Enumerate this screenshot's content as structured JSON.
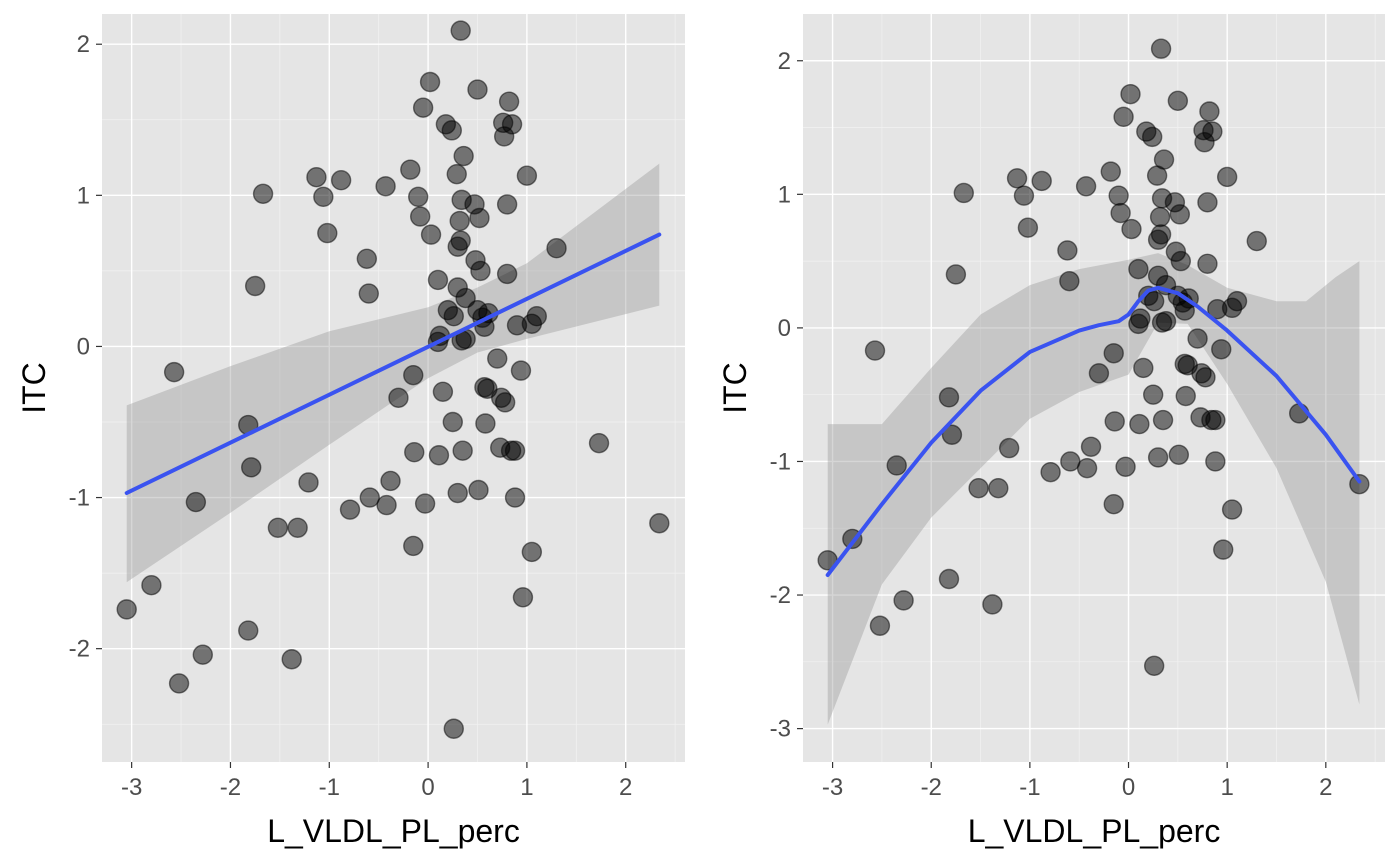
{
  "chart_data": [
    {
      "type": "scatter",
      "smooth": "linear fit with confidence band",
      "xlabel": "L_VLDL_PL_perc",
      "ylabel": "ITC",
      "xlim": [
        -3.3,
        2.6
      ],
      "ylim": [
        -2.75,
        2.2
      ],
      "x_ticks": [
        -3,
        -2,
        -1,
        0,
        1,
        2
      ],
      "y_ticks": [
        -2,
        -1,
        0,
        1,
        2
      ],
      "line_color": "#3a53f0",
      "points": [
        [
          -3.05,
          -1.74
        ],
        [
          -2.8,
          -1.58
        ],
        [
          -2.57,
          -0.17
        ],
        [
          -2.52,
          -2.23
        ],
        [
          -2.35,
          -1.03
        ],
        [
          -2.28,
          -2.04
        ],
        [
          -1.82,
          -0.52
        ],
        [
          -1.82,
          -1.88
        ],
        [
          -1.79,
          -0.8
        ],
        [
          -1.75,
          0.4
        ],
        [
          -1.67,
          1.01
        ],
        [
          -1.52,
          -1.2
        ],
        [
          -1.38,
          -2.07
        ],
        [
          -1.32,
          -1.2
        ],
        [
          -1.21,
          -0.9
        ],
        [
          -1.13,
          1.12
        ],
        [
          -1.06,
          0.99
        ],
        [
          -1.02,
          0.75
        ],
        [
          -0.88,
          1.1
        ],
        [
          -0.79,
          -1.08
        ],
        [
          -0.62,
          0.58
        ],
        [
          -0.6,
          0.35
        ],
        [
          -0.59,
          -1.0
        ],
        [
          -0.43,
          1.06
        ],
        [
          -0.42,
          -1.05
        ],
        [
          -0.38,
          -0.89
        ],
        [
          -0.3,
          -0.34
        ],
        [
          -0.18,
          1.17
        ],
        [
          -0.15,
          -0.19
        ],
        [
          -0.15,
          -1.32
        ],
        [
          -0.14,
          -0.7
        ],
        [
          -0.1,
          0.99
        ],
        [
          -0.08,
          0.86
        ],
        [
          -0.05,
          1.58
        ],
        [
          -0.03,
          -1.04
        ],
        [
          0.02,
          1.75
        ],
        [
          0.03,
          0.74
        ],
        [
          0.1,
          0.44
        ],
        [
          0.1,
          0.03
        ],
        [
          0.11,
          -0.72
        ],
        [
          0.12,
          0.07
        ],
        [
          0.15,
          -0.3
        ],
        [
          0.18,
          1.47
        ],
        [
          0.2,
          0.24
        ],
        [
          0.24,
          1.43
        ],
        [
          0.25,
          -0.5
        ],
        [
          0.26,
          0.2
        ],
        [
          0.26,
          -2.53
        ],
        [
          0.29,
          1.14
        ],
        [
          0.3,
          0.39
        ],
        [
          0.3,
          0.66
        ],
        [
          0.3,
          -0.97
        ],
        [
          0.32,
          0.83
        ],
        [
          0.33,
          0.7
        ],
        [
          0.33,
          2.09
        ],
        [
          0.34,
          0.04
        ],
        [
          0.34,
          0.97
        ],
        [
          0.35,
          -0.69
        ],
        [
          0.36,
          1.26
        ],
        [
          0.38,
          0.05
        ],
        [
          0.38,
          0.32
        ],
        [
          0.47,
          0.94
        ],
        [
          0.48,
          0.57
        ],
        [
          0.5,
          1.7
        ],
        [
          0.5,
          0.24
        ],
        [
          0.51,
          -0.95
        ],
        [
          0.52,
          0.85
        ],
        [
          0.53,
          0.5
        ],
        [
          0.55,
          0.19
        ],
        [
          0.57,
          0.13
        ],
        [
          0.57,
          -0.27
        ],
        [
          0.58,
          -0.51
        ],
        [
          0.6,
          -0.28
        ],
        [
          0.61,
          0.22
        ],
        [
          0.7,
          -0.08
        ],
        [
          0.73,
          -0.67
        ],
        [
          0.74,
          -0.34
        ],
        [
          0.76,
          1.48
        ],
        [
          0.77,
          1.39
        ],
        [
          0.78,
          -0.37
        ],
        [
          0.8,
          0.94
        ],
        [
          0.8,
          0.48
        ],
        [
          0.82,
          1.62
        ],
        [
          0.84,
          -0.69
        ],
        [
          0.85,
          1.47
        ],
        [
          0.88,
          -0.69
        ],
        [
          0.88,
          -1.0
        ],
        [
          0.9,
          0.14
        ],
        [
          0.94,
          -0.16
        ],
        [
          0.96,
          -1.66
        ],
        [
          1.0,
          1.13
        ],
        [
          1.05,
          -1.36
        ],
        [
          1.05,
          0.15
        ],
        [
          1.1,
          0.2
        ],
        [
          1.3,
          0.65
        ],
        [
          1.73,
          -0.64
        ],
        [
          2.34,
          -1.17
        ]
      ],
      "fit": [
        [
          -3.05,
          -0.97
        ],
        [
          2.34,
          0.74
        ]
      ],
      "band_upper": [
        [
          -3.05,
          -0.39
        ],
        [
          -2.0,
          -0.13
        ],
        [
          -1.0,
          0.1
        ],
        [
          0.0,
          0.26
        ],
        [
          0.5,
          0.39
        ],
        [
          1.0,
          0.55
        ],
        [
          2.34,
          1.21
        ]
      ],
      "band_lower": [
        [
          -3.05,
          -1.56
        ],
        [
          -2.0,
          -1.1
        ],
        [
          -1.0,
          -0.65
        ],
        [
          0.0,
          -0.21
        ],
        [
          0.5,
          -0.04
        ],
        [
          1.0,
          0.05
        ],
        [
          2.34,
          0.27
        ]
      ]
    },
    {
      "type": "scatter",
      "smooth": "loess fit with confidence band",
      "xlabel": "L_VLDL_PL_perc",
      "ylabel": "ITC",
      "xlim": [
        -3.3,
        2.6
      ],
      "ylim": [
        -3.25,
        2.35
      ],
      "x_ticks": [
        -3,
        -2,
        -1,
        0,
        1,
        2
      ],
      "y_ticks": [
        -3,
        -2,
        -1,
        0,
        1,
        2
      ],
      "line_color": "#3a53f0",
      "points": [
        [
          -3.05,
          -1.74
        ],
        [
          -2.8,
          -1.58
        ],
        [
          -2.57,
          -0.17
        ],
        [
          -2.52,
          -2.23
        ],
        [
          -2.35,
          -1.03
        ],
        [
          -2.28,
          -2.04
        ],
        [
          -1.82,
          -0.52
        ],
        [
          -1.82,
          -1.88
        ],
        [
          -1.79,
          -0.8
        ],
        [
          -1.75,
          0.4
        ],
        [
          -1.67,
          1.01
        ],
        [
          -1.52,
          -1.2
        ],
        [
          -1.38,
          -2.07
        ],
        [
          -1.32,
          -1.2
        ],
        [
          -1.21,
          -0.9
        ],
        [
          -1.13,
          1.12
        ],
        [
          -1.06,
          0.99
        ],
        [
          -1.02,
          0.75
        ],
        [
          -0.88,
          1.1
        ],
        [
          -0.79,
          -1.08
        ],
        [
          -0.62,
          0.58
        ],
        [
          -0.6,
          0.35
        ],
        [
          -0.59,
          -1.0
        ],
        [
          -0.43,
          1.06
        ],
        [
          -0.42,
          -1.05
        ],
        [
          -0.38,
          -0.89
        ],
        [
          -0.3,
          -0.34
        ],
        [
          -0.18,
          1.17
        ],
        [
          -0.15,
          -0.19
        ],
        [
          -0.15,
          -1.32
        ],
        [
          -0.14,
          -0.7
        ],
        [
          -0.1,
          0.99
        ],
        [
          -0.08,
          0.86
        ],
        [
          -0.05,
          1.58
        ],
        [
          -0.03,
          -1.04
        ],
        [
          0.02,
          1.75
        ],
        [
          0.03,
          0.74
        ],
        [
          0.1,
          0.44
        ],
        [
          0.1,
          0.03
        ],
        [
          0.11,
          -0.72
        ],
        [
          0.12,
          0.07
        ],
        [
          0.15,
          -0.3
        ],
        [
          0.18,
          1.47
        ],
        [
          0.2,
          0.24
        ],
        [
          0.24,
          1.43
        ],
        [
          0.25,
          -0.5
        ],
        [
          0.26,
          0.2
        ],
        [
          0.26,
          -2.53
        ],
        [
          0.29,
          1.14
        ],
        [
          0.3,
          0.39
        ],
        [
          0.3,
          0.66
        ],
        [
          0.3,
          -0.97
        ],
        [
          0.32,
          0.83
        ],
        [
          0.33,
          0.7
        ],
        [
          0.33,
          2.09
        ],
        [
          0.34,
          0.04
        ],
        [
          0.34,
          0.97
        ],
        [
          0.35,
          -0.69
        ],
        [
          0.36,
          1.26
        ],
        [
          0.38,
          0.05
        ],
        [
          0.38,
          0.32
        ],
        [
          0.47,
          0.94
        ],
        [
          0.48,
          0.57
        ],
        [
          0.5,
          1.7
        ],
        [
          0.5,
          0.24
        ],
        [
          0.51,
          -0.95
        ],
        [
          0.52,
          0.85
        ],
        [
          0.53,
          0.5
        ],
        [
          0.55,
          0.19
        ],
        [
          0.57,
          0.13
        ],
        [
          0.57,
          -0.27
        ],
        [
          0.58,
          -0.51
        ],
        [
          0.6,
          -0.28
        ],
        [
          0.61,
          0.22
        ],
        [
          0.7,
          -0.08
        ],
        [
          0.73,
          -0.67
        ],
        [
          0.74,
          -0.34
        ],
        [
          0.76,
          1.48
        ],
        [
          0.77,
          1.39
        ],
        [
          0.78,
          -0.37
        ],
        [
          0.8,
          0.94
        ],
        [
          0.8,
          0.48
        ],
        [
          0.82,
          1.62
        ],
        [
          0.84,
          -0.69
        ],
        [
          0.85,
          1.47
        ],
        [
          0.88,
          -0.69
        ],
        [
          0.88,
          -1.0
        ],
        [
          0.9,
          0.14
        ],
        [
          0.94,
          -0.16
        ],
        [
          0.96,
          -1.66
        ],
        [
          1.0,
          1.13
        ],
        [
          1.05,
          -1.36
        ],
        [
          1.05,
          0.15
        ],
        [
          1.1,
          0.2
        ],
        [
          1.3,
          0.65
        ],
        [
          1.73,
          -0.64
        ],
        [
          2.34,
          -1.17
        ]
      ],
      "fit": [
        [
          -3.05,
          -1.85
        ],
        [
          -2.5,
          -1.32
        ],
        [
          -2.0,
          -0.86
        ],
        [
          -1.5,
          -0.47
        ],
        [
          -1.0,
          -0.18
        ],
        [
          -0.5,
          -0.02
        ],
        [
          -0.3,
          0.02
        ],
        [
          -0.1,
          0.05
        ],
        [
          0.0,
          0.1
        ],
        [
          0.1,
          0.2
        ],
        [
          0.2,
          0.28
        ],
        [
          0.3,
          0.3
        ],
        [
          0.5,
          0.26
        ],
        [
          0.7,
          0.16
        ],
        [
          1.0,
          -0.02
        ],
        [
          1.5,
          -0.36
        ],
        [
          2.0,
          -0.8
        ],
        [
          2.34,
          -1.15
        ]
      ],
      "band_upper": [
        [
          -3.05,
          -0.72
        ],
        [
          -2.5,
          -0.72
        ],
        [
          -2.0,
          -0.3
        ],
        [
          -1.5,
          0.1
        ],
        [
          -1.0,
          0.32
        ],
        [
          -0.5,
          0.44
        ],
        [
          0.0,
          0.51
        ],
        [
          0.3,
          0.56
        ],
        [
          0.6,
          0.47
        ],
        [
          1.0,
          0.3
        ],
        [
          1.5,
          0.2
        ],
        [
          1.8,
          0.2
        ],
        [
          2.1,
          0.38
        ],
        [
          2.34,
          0.5
        ]
      ],
      "band_lower": [
        [
          -3.05,
          -2.97
        ],
        [
          -2.5,
          -1.92
        ],
        [
          -2.0,
          -1.42
        ],
        [
          -1.5,
          -1.05
        ],
        [
          -1.0,
          -0.68
        ],
        [
          -0.5,
          -0.48
        ],
        [
          0.0,
          -0.35
        ],
        [
          0.3,
          0.04
        ],
        [
          0.6,
          0.03
        ],
        [
          1.0,
          -0.42
        ],
        [
          1.5,
          -1.05
        ],
        [
          2.0,
          -1.9
        ],
        [
          2.34,
          -2.82
        ]
      ]
    }
  ]
}
